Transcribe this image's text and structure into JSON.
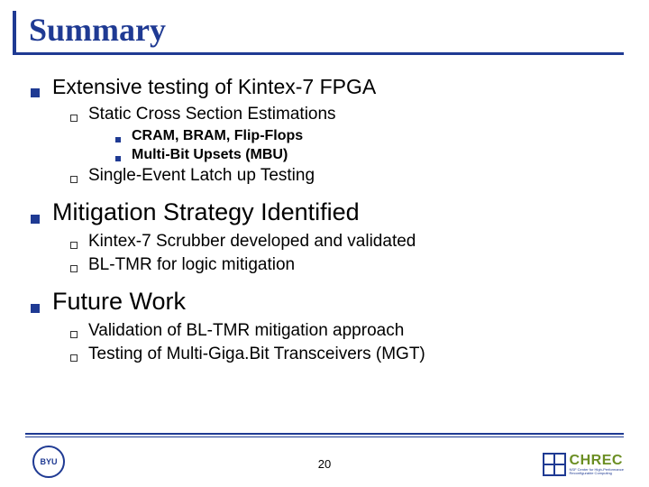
{
  "title": "Summary",
  "items": {
    "l1_0": "Extensive testing of Kintex-7 FPGA",
    "l2_0": "Static Cross Section Estimations",
    "l3_0": "CRAM, BRAM, Flip-Flops",
    "l3_1": "Multi-Bit Upsets (MBU)",
    "l2_1": "Single-Event Latch up Testing",
    "l1_1": "Mitigation Strategy Identified",
    "l2_2": "Kintex-7 Scrubber developed and validated",
    "l2_3": "BL-TMR for logic mitigation",
    "l1_2": "Future Work",
    "l2_4": "Validation of BL-TMR mitigation approach",
    "l2_5": "Testing of Multi-Giga.Bit Transceivers (MGT)"
  },
  "page_number": "20",
  "logos": {
    "byu": "BYU",
    "chrec": "CHREC",
    "chrec_sub1": "NSF Center for High-Performance",
    "chrec_sub2": "Reconfigurable Computing"
  }
}
